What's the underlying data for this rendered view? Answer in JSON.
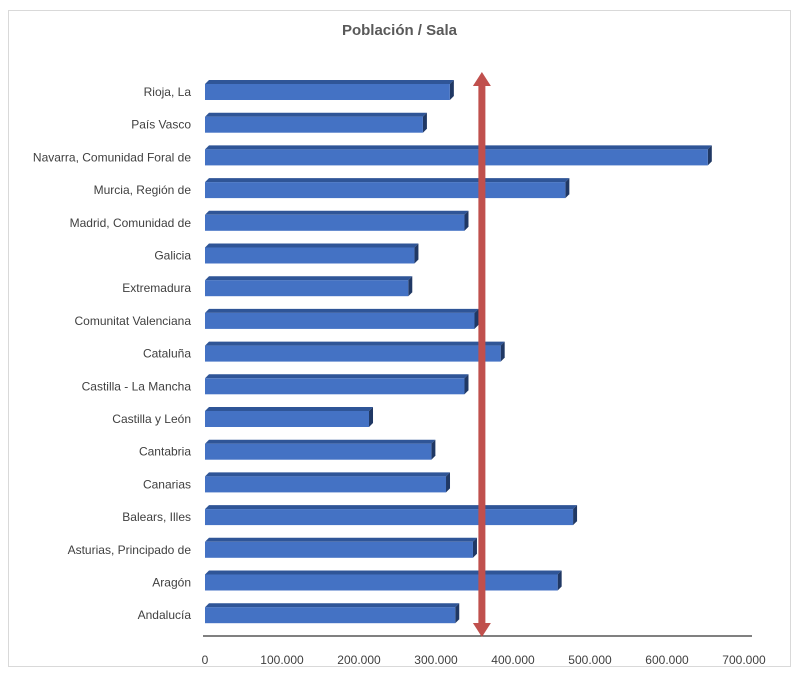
{
  "chart_data": {
    "type": "bar",
    "orientation": "horizontal",
    "title": "Población / Sala",
    "xlabel": "",
    "ylabel": "",
    "xlim": [
      0,
      700000
    ],
    "xticks": [
      "0",
      "100.000",
      "200.000",
      "300.000",
      "400.000",
      "500.000",
      "600.000",
      "700.000"
    ],
    "grid": false,
    "legend": "none",
    "categories": [
      "Rioja, La",
      "País Vasco",
      "Navarra, Comunidad Foral de",
      "Murcia, Región de",
      "Madrid, Comunidad de",
      "Galicia",
      "Extremadura",
      "Comunitat Valenciana",
      "Cataluña",
      "Castilla - La Mancha",
      "Castilla y León",
      "Cantabria",
      "Canarias",
      "Balears, Illes",
      "Asturias, Principado de",
      "Aragón",
      "Andalucía"
    ],
    "values": [
      318000,
      283000,
      653000,
      468000,
      337000,
      272000,
      264000,
      350000,
      384000,
      337000,
      213000,
      294000,
      313000,
      478000,
      348000,
      458000,
      325000
    ],
    "reference_line": {
      "value": 357000,
      "orientation": "vertical",
      "arrows": "both"
    },
    "colors": {
      "bar": "#4472c4",
      "bar_top": "#2f5597",
      "bar_side": "#203864",
      "reference_line": "#c0504d",
      "axis": "#000000"
    }
  }
}
